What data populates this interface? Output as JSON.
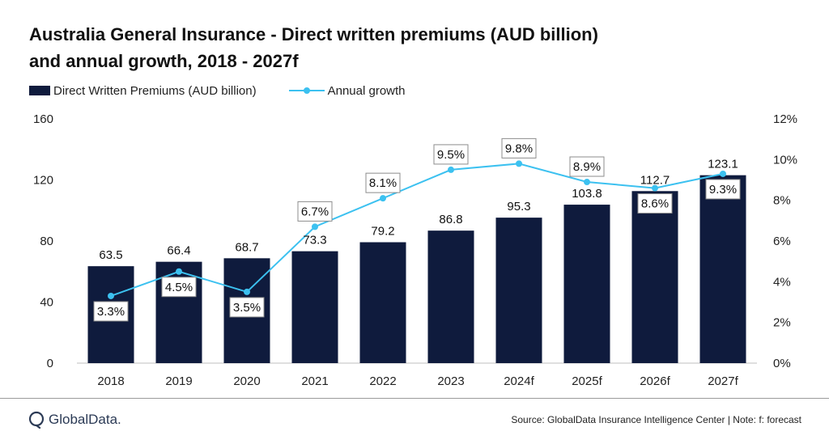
{
  "title_line1": "Australia General Insurance - Direct written premiums (AUD billion)",
  "title_line2": "and annual growth, 2018 - 2027f",
  "legend": {
    "bar_label": "Direct Written Premiums (AUD billion)",
    "line_label": "Annual growth"
  },
  "colors": {
    "bar": "#0f1b3d",
    "line": "#3cc1f0",
    "axis": "#bfbfbf"
  },
  "chart_data": {
    "type": "bar",
    "categories": [
      "2018",
      "2019",
      "2020",
      "2021",
      "2022",
      "2023",
      "2024f",
      "2025f",
      "2026f",
      "2027f"
    ],
    "series": [
      {
        "name": "Direct Written Premiums (AUD billion)",
        "type": "bar",
        "axis": "left",
        "values": [
          63.5,
          66.4,
          68.7,
          73.3,
          79.2,
          86.8,
          95.3,
          103.8,
          112.7,
          123.1
        ]
      },
      {
        "name": "Annual growth",
        "type": "line",
        "axis": "right",
        "values": [
          3.3,
          4.5,
          3.5,
          6.7,
          8.1,
          9.5,
          9.8,
          8.9,
          8.6,
          9.3
        ]
      }
    ],
    "y_left": {
      "ylim": [
        0,
        160
      ],
      "ticks": [
        "0",
        "40",
        "80",
        "120",
        "160"
      ]
    },
    "y_right": {
      "ylim": [
        0,
        12
      ],
      "ticks": [
        "0%",
        "2%",
        "4%",
        "6%",
        "8%",
        "10%",
        "12%"
      ]
    },
    "grid": false,
    "legend_position": "top-left"
  },
  "footer": {
    "logo_text": "GlobalData.",
    "source": "Source: GlobalData Insurance Intelligence Center | Note: f: forecast"
  }
}
